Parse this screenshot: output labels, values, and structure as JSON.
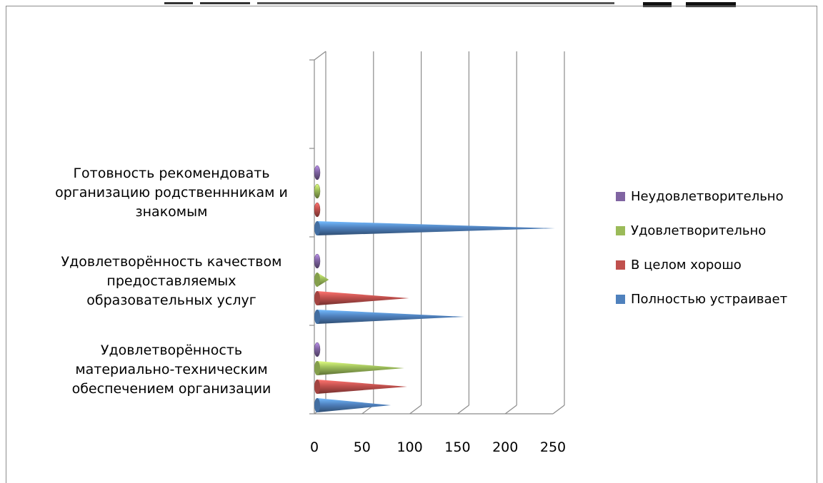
{
  "chart_data": {
    "type": "bar",
    "style": "3d-cone-horizontal",
    "categories": [
      "Удовлетворённость материально-техническим обеспечением организации",
      "Удовлетворённость качеством предоставляемых образовательных услуг",
      "Готовность рекомендовать организацию родственнникам и знакомым"
    ],
    "category_lines": [
      [
        "Удовлетворённость",
        "материально-техническим",
        "обеспечением организации"
      ],
      [
        "Удовлетворённость качеством",
        "предоставляемых",
        "образовательных услуг"
      ],
      [
        "Готовность рекомендовать",
        "организацию родственнникам и",
        "знакомым"
      ]
    ],
    "series": [
      {
        "name": "Полностью устраивает",
        "color": "#4f81bd",
        "values": [
          73,
          150,
          245
        ]
      },
      {
        "name": "В целом хорошо",
        "color": "#c0504d",
        "values": [
          90,
          92,
          2
        ]
      },
      {
        "name": "Удовлетворительно",
        "color": "#9bbb59",
        "values": [
          87,
          8,
          2
        ]
      },
      {
        "name": "Неудовлетворительно",
        "color": "#8064a2",
        "values": [
          2,
          2,
          2
        ]
      }
    ],
    "xlim": [
      0,
      250
    ],
    "x_ticks": [
      0,
      50,
      100,
      150,
      200,
      250
    ],
    "x_tick_labels": [
      "0",
      "50",
      "100",
      "150",
      "200",
      "250"
    ],
    "grid": true,
    "legend_position": "right",
    "legend_order": [
      "Неудовлетворительно",
      "Удовлетворительно",
      "В целом хорошо",
      "Полностью устраивает"
    ]
  }
}
